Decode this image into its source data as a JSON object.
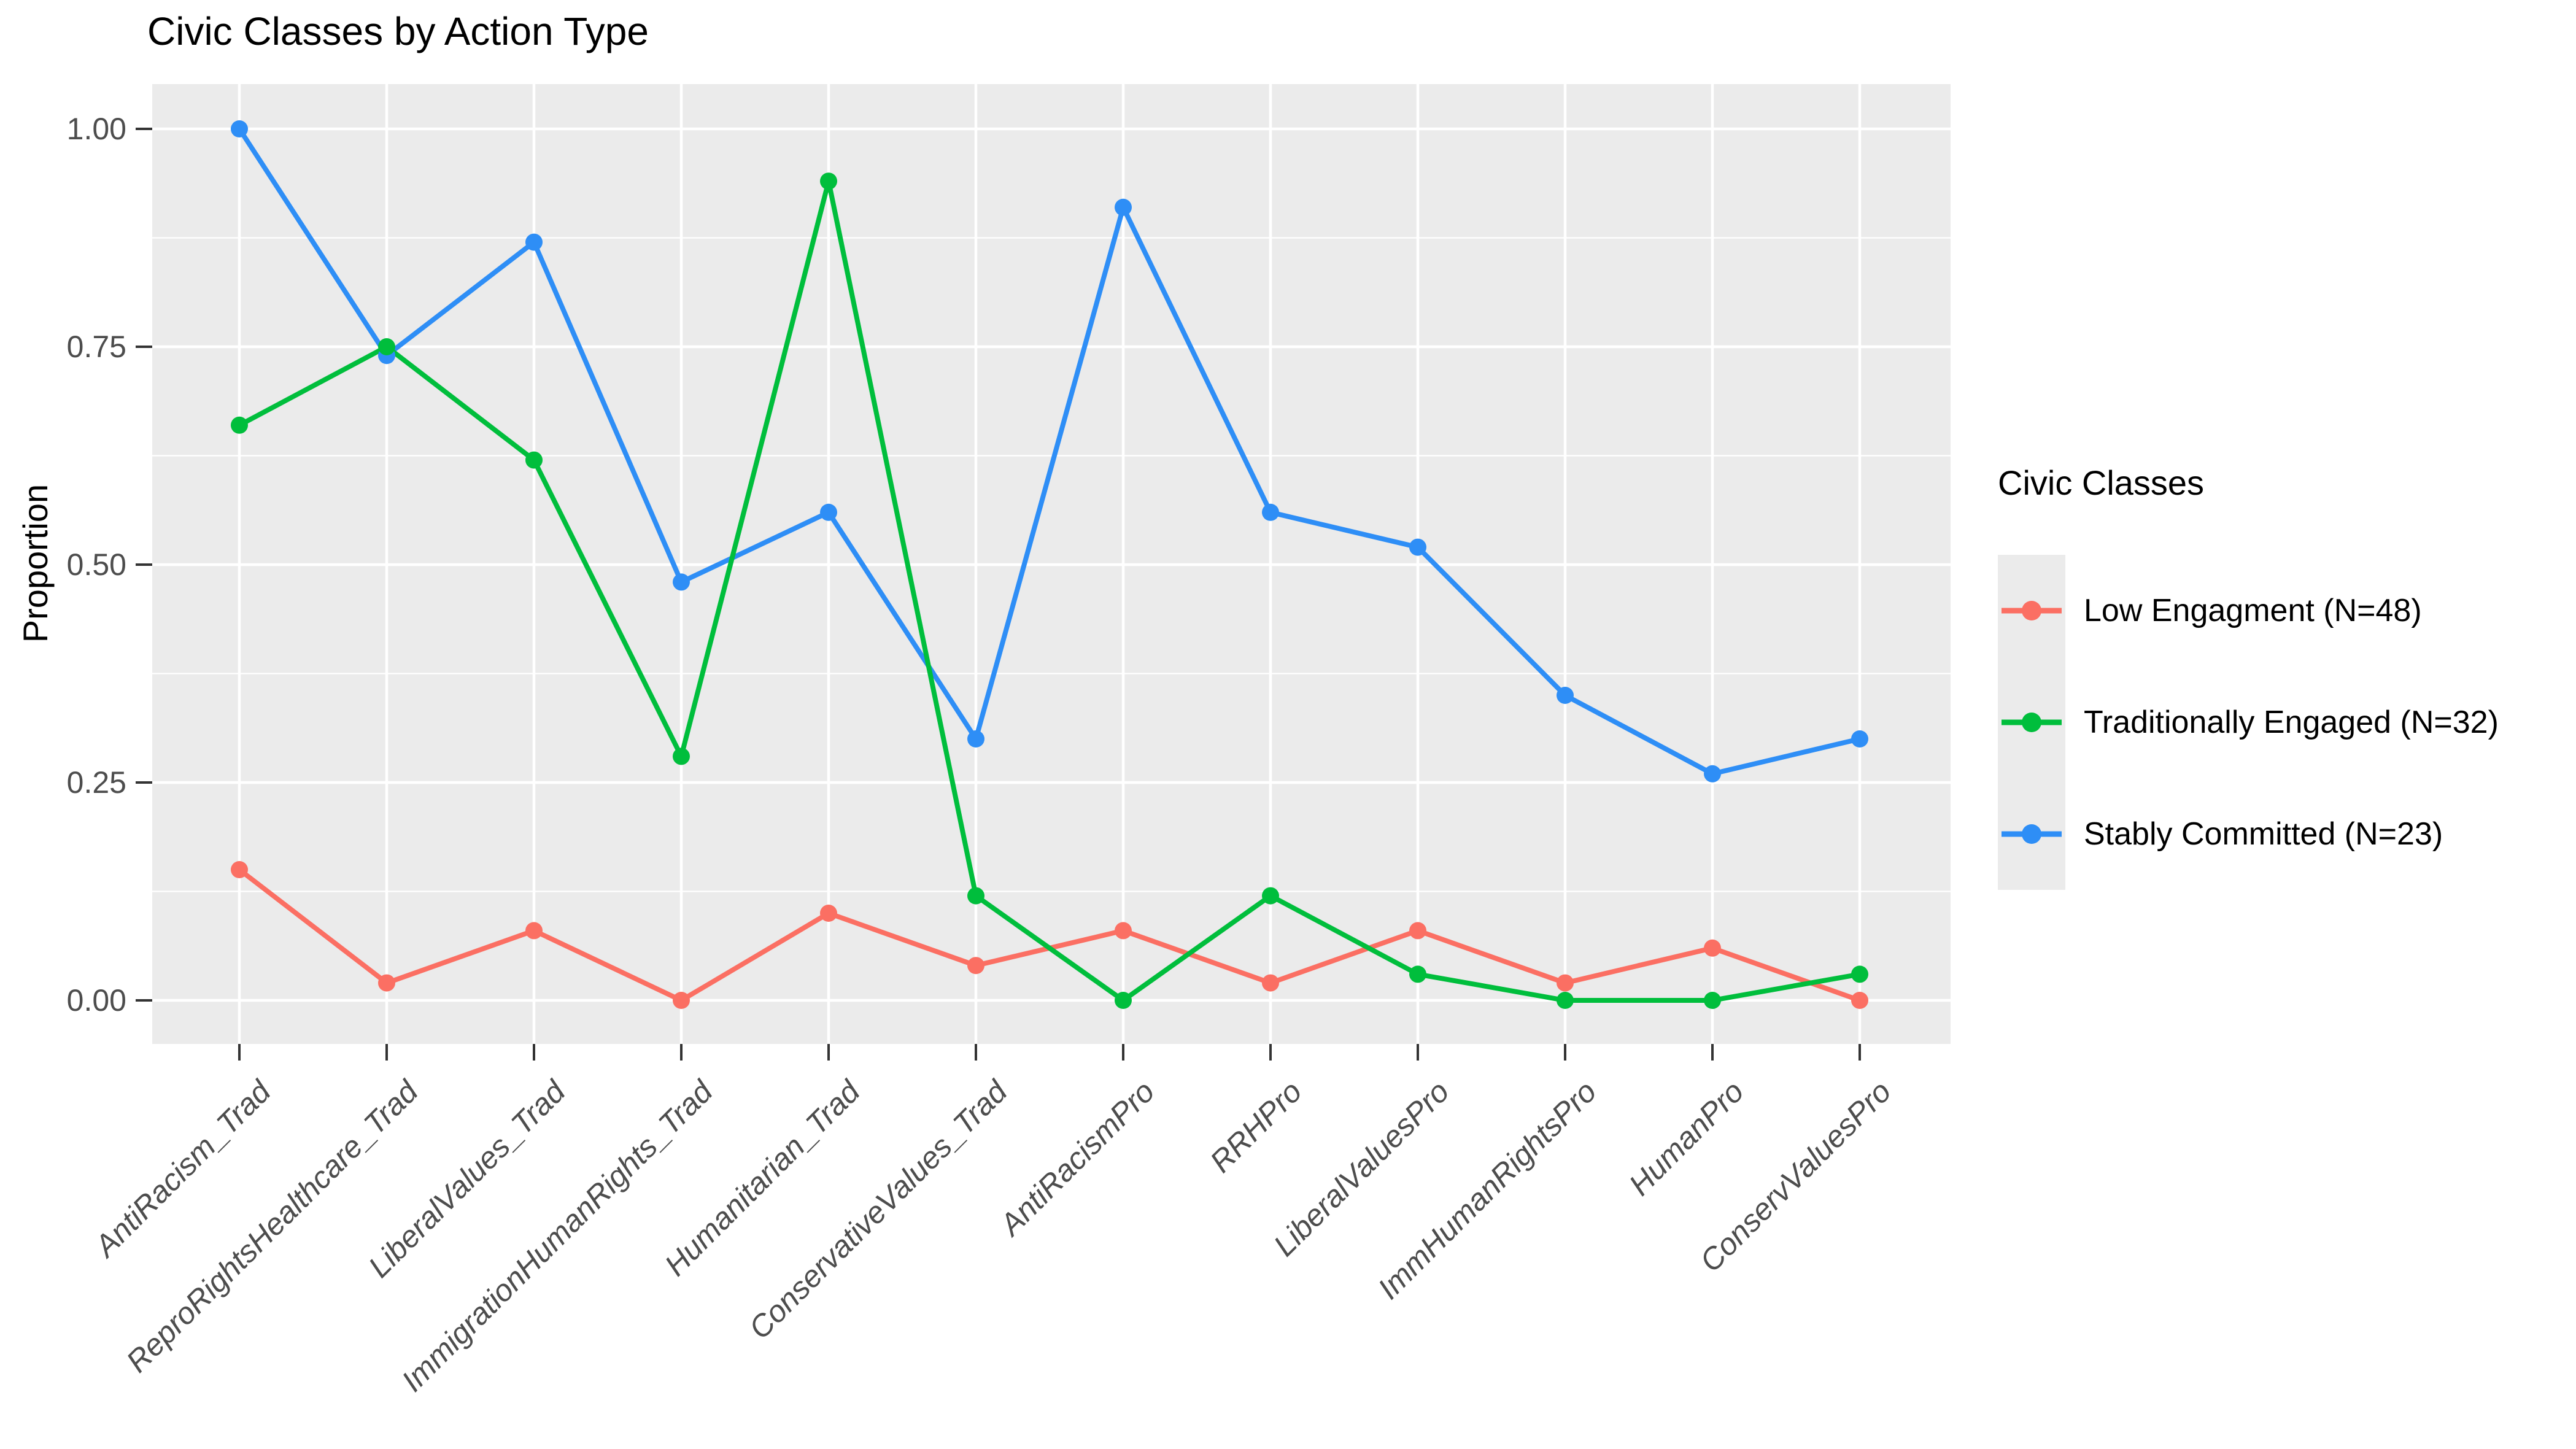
{
  "chart_data": {
    "type": "line",
    "title": "Civic Classes by Action Type",
    "ylabel": "Proportion",
    "xlabel": "",
    "categories": [
      "AntiRacism_Trad",
      "ReproRightsHealthcare_Trad",
      "LiberalValues_Trad",
      "ImmigrationHumanRights_Trad",
      "Humanitarian_Trad",
      "ConservativeValues_Trad",
      "AntiRacismPro",
      "RRHPro",
      "LiberalValuesPro",
      "ImmHumanRightsPro",
      "HumanPro",
      "ConservValuesPro"
    ],
    "series": [
      {
        "name": "Low Engagment (N=48)",
        "color": "#FB6F63",
        "values": [
          0.15,
          0.02,
          0.08,
          0.0,
          0.1,
          0.04,
          0.08,
          0.02,
          0.08,
          0.02,
          0.06,
          0.0
        ]
      },
      {
        "name": "Stably Committed (N=23)",
        "color": "#2E8EF6",
        "values": [
          1.0,
          0.74,
          0.87,
          0.48,
          0.56,
          0.3,
          0.91,
          0.56,
          0.52,
          0.35,
          0.26,
          0.3
        ]
      },
      {
        "name": "Traditionally Engaged (N=32)",
        "color": "#00BE3C",
        "values": [
          0.66,
          0.75,
          0.62,
          0.28,
          0.94,
          0.12,
          0.0,
          0.12,
          0.03,
          0.0,
          0.0,
          0.03
        ]
      }
    ],
    "legend": {
      "title": "Civic Classes",
      "position": "right",
      "order": [
        "Low Engagment (N=48)",
        "Traditionally Engaged (N=32)",
        "Stably Committed (N=23)"
      ]
    },
    "ylim": [
      0,
      1
    ],
    "yticks": [
      {
        "label": "0.00",
        "value": 0
      },
      {
        "label": "0.25",
        "value": 0.25
      },
      {
        "label": "0.50",
        "value": 0.5
      },
      {
        "label": "0.75",
        "value": 0.75
      },
      {
        "label": "1.00",
        "value": 1
      }
    ],
    "minor_ticks": [
      0.125,
      0.375,
      0.625,
      0.875
    ],
    "grid": "on",
    "colors": {
      "panel_bg": "#EBEBEB",
      "grid": "#FFFFFF",
      "axis_text": "#4D4D4D",
      "tick_mark": "#333333"
    }
  }
}
